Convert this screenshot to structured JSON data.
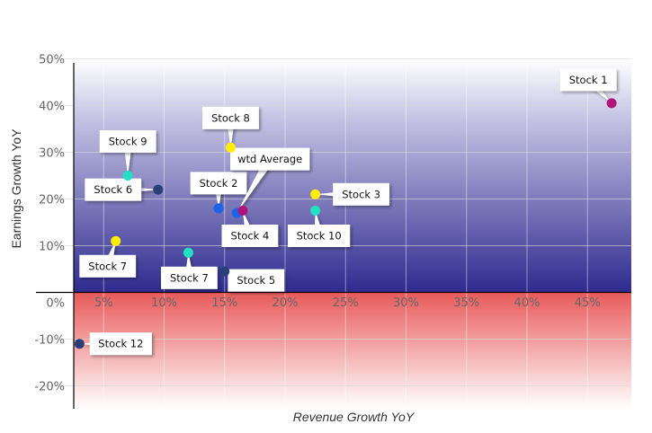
{
  "chart_data": {
    "type": "scatter",
    "xlabel": "Revenue Growth YoY",
    "ylabel": "Earnings Growth YoY",
    "xlim": [
      2.5,
      47.5
    ],
    "ylim": [
      -22,
      50
    ],
    "x_ticks": [
      "5%",
      "10%",
      "15%",
      "20%",
      "25%",
      "30%",
      "35%",
      "40%",
      "45%"
    ],
    "y_ticks": [
      "50%",
      "40%",
      "30%",
      "20%",
      "10%",
      "0%",
      "-10%",
      "-20%"
    ],
    "grid": true,
    "legend": "none",
    "band_colors": {
      "positive": "#2e2a8f",
      "negative": "#e85a5a"
    },
    "points": [
      {
        "label": "Stock 1",
        "x": 47,
        "y": 40.5,
        "color": "#b0147a"
      },
      {
        "label": "Stock 8",
        "x": 15.5,
        "y": 31,
        "color": "#ffee00"
      },
      {
        "label": "Stock 9",
        "x": 7,
        "y": 25,
        "color": "#22e0c4"
      },
      {
        "label": "Stock 6",
        "x": 9.5,
        "y": 22,
        "color": "#2a3f7a"
      },
      {
        "label": "Stock 2",
        "x": 14.5,
        "y": 18,
        "color": "#1b64ea"
      },
      {
        "label": "wtd Average",
        "x": 16,
        "y": 17,
        "color": "#1b64ea"
      },
      {
        "label": "Stock 4",
        "x": 16.5,
        "y": 17.5,
        "color": "#b0147a"
      },
      {
        "label": "Stock 3",
        "x": 22.5,
        "y": 21,
        "color": "#ffee00"
      },
      {
        "label": "Stock 10",
        "x": 22.5,
        "y": 17.5,
        "color": "#22e0c4"
      },
      {
        "label": "Stock 7",
        "x": 6,
        "y": 11,
        "color": "#ffee00"
      },
      {
        "label": "Stock 7",
        "x": 12,
        "y": 8.5,
        "color": "#22e0c4"
      },
      {
        "label": "Stock 5",
        "x": 15,
        "y": 4.5,
        "color": "#2a3f7a"
      },
      {
        "label": "Stock 12",
        "x": 3,
        "y": -11,
        "color": "#2a3f7a"
      }
    ]
  }
}
